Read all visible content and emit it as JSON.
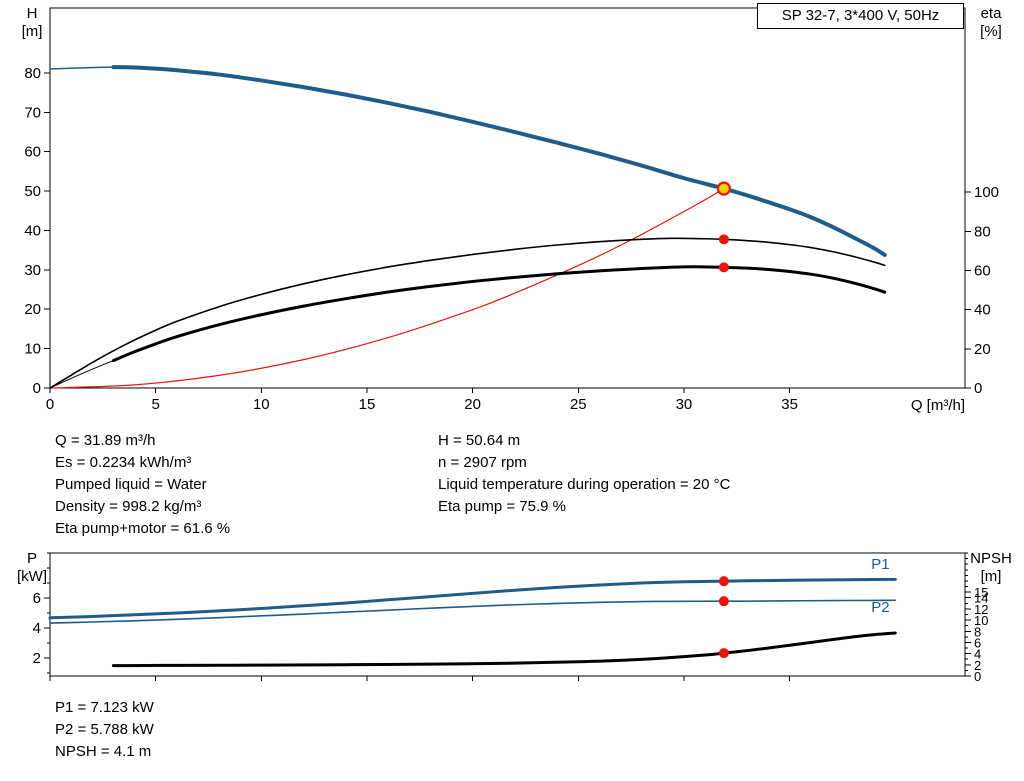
{
  "title_box": "SP 32-7, 3*400 V, 50Hz",
  "info_top": {
    "left": [
      "Q = 31.89 m³/h",
      "Es = 0.2234 kWh/m³",
      "Pumped liquid = Water",
      "Density = 998.2 kg/m³",
      "Eta pump+motor = 61.6 %"
    ],
    "right": [
      "H = 50.64 m",
      "n = 2907 rpm",
      "Liquid temperature during operation = 20 °C",
      "Eta pump = 75.9 %"
    ]
  },
  "info_bottom": [
    "P1 = 7.123 kW",
    "P2 = 5.788 kW",
    "NPSH = 4.1 m"
  ],
  "colors": {
    "curve_blue": "#1f5c8a",
    "curve_black": "#000000",
    "curve_red": "#e01810",
    "marker_red": "#e8140c",
    "duty_fill": "#ffd400"
  },
  "chart_data": [
    {
      "name": "head-efficiency-chart",
      "type": "line",
      "x_axis": {
        "label": "Q [m³/h]",
        "min": 0,
        "max": 43.3,
        "ticks": [
          0,
          5,
          10,
          15,
          20,
          25,
          30,
          35
        ],
        "show_labels": true
      },
      "y_left": {
        "label_lines": [
          "H",
          "[m]"
        ],
        "min": 0,
        "max": 96.5,
        "ticks": [
          0,
          10,
          20,
          30,
          40,
          50,
          60,
          70,
          80
        ]
      },
      "y_right": {
        "label_lines": [
          "eta",
          "[%]"
        ],
        "min": 0,
        "max": 194,
        "ticks": [
          0,
          20,
          40,
          60,
          80,
          100
        ]
      },
      "series": [
        {
          "name": "system-curve",
          "axis": "left",
          "color": "#e01810",
          "width": 1.2,
          "points": [
            [
              0,
              0
            ],
            [
              4,
              0.8
            ],
            [
              8,
              3.2
            ],
            [
              12,
              7.2
            ],
            [
              16,
              12.8
            ],
            [
              20,
              19.9
            ],
            [
              22,
              24.1
            ],
            [
              24,
              28.7
            ],
            [
              26,
              33.6
            ],
            [
              28,
              39
            ],
            [
              30,
              44.8
            ],
            [
              31,
              47.8
            ],
            [
              31.89,
              50.64
            ]
          ]
        },
        {
          "name": "head-curve-start",
          "axis": "left",
          "color": "#1f5c8a",
          "width": 1.5,
          "points": [
            [
              0,
              81
            ],
            [
              1.5,
              81.3
            ],
            [
              3,
              81.5
            ]
          ]
        },
        {
          "name": "head-curve",
          "axis": "left",
          "color": "#1f5c8a",
          "width": 4,
          "points": [
            [
              3,
              81.5
            ],
            [
              4,
              81.4
            ],
            [
              5,
              81.1
            ],
            [
              6,
              80.7
            ],
            [
              8,
              79.6
            ],
            [
              10,
              78.1
            ],
            [
              12,
              76.4
            ],
            [
              14,
              74.5
            ],
            [
              16,
              72.4
            ],
            [
              18,
              70.1
            ],
            [
              20,
              67.6
            ],
            [
              22,
              65
            ],
            [
              24,
              62.3
            ],
            [
              26,
              59.5
            ],
            [
              28,
              56.5
            ],
            [
              30,
              53.3
            ],
            [
              31.89,
              50.64
            ],
            [
              33,
              48.9
            ],
            [
              35,
              45.4
            ],
            [
              36,
              43.4
            ],
            [
              37,
              41
            ],
            [
              38,
              38.3
            ],
            [
              39,
              35.5
            ],
            [
              39.5,
              33.8
            ]
          ]
        },
        {
          "name": "eta-pump-curve",
          "axis": "right",
          "color": "#000000",
          "width": 1.6,
          "points": [
            [
              0,
              0
            ],
            [
              1,
              6.5
            ],
            [
              2,
              13
            ],
            [
              3,
              19
            ],
            [
              4,
              24.5
            ],
            [
              5,
              29.5
            ],
            [
              6,
              34
            ],
            [
              8,
              41.5
            ],
            [
              10,
              47.8
            ],
            [
              12,
              53.2
            ],
            [
              14,
              57.8
            ],
            [
              16,
              61.8
            ],
            [
              18,
              65.2
            ],
            [
              20,
              68.2
            ],
            [
              22,
              70.8
            ],
            [
              24,
              73
            ],
            [
              26,
              74.7
            ],
            [
              28,
              75.9
            ],
            [
              29.5,
              76.4
            ],
            [
              31,
              76.2
            ],
            [
              31.89,
              75.9
            ],
            [
              33,
              75.2
            ],
            [
              34,
              74.4
            ],
            [
              35,
              73.2
            ],
            [
              36,
              71.7
            ],
            [
              37,
              69.7
            ],
            [
              38,
              67.2
            ],
            [
              39,
              64.3
            ],
            [
              39.5,
              62.6
            ]
          ]
        },
        {
          "name": "eta-pump-motor-start",
          "axis": "right",
          "color": "#000000",
          "width": 1,
          "points": [
            [
              0,
              0
            ],
            [
              1,
              4.9
            ],
            [
              2,
              9.6
            ],
            [
              3,
              14
            ]
          ]
        },
        {
          "name": "eta-pump-motor-curve",
          "axis": "right",
          "color": "#000000",
          "width": 3,
          "points": [
            [
              3,
              14
            ],
            [
              4,
              18.5
            ],
            [
              5,
              22.5
            ],
            [
              6,
              26.2
            ],
            [
              8,
              32.3
            ],
            [
              10,
              37.4
            ],
            [
              12,
              41.8
            ],
            [
              14,
              45.6
            ],
            [
              16,
              49
            ],
            [
              18,
              51.9
            ],
            [
              20,
              54.4
            ],
            [
              22,
              56.5
            ],
            [
              24,
              58.3
            ],
            [
              26,
              59.8
            ],
            [
              28,
              61
            ],
            [
              29.5,
              61.7
            ],
            [
              30.5,
              61.9
            ],
            [
              31.89,
              61.6
            ],
            [
              33,
              61.2
            ],
            [
              34,
              60.5
            ],
            [
              35,
              59.5
            ],
            [
              36,
              58.1
            ],
            [
              37,
              56.2
            ],
            [
              38,
              53.7
            ],
            [
              39,
              50.7
            ],
            [
              39.5,
              48.9
            ]
          ]
        }
      ],
      "markers": [
        {
          "name": "duty-point",
          "axis": "left",
          "x": 31.89,
          "y": 50.64,
          "style": "duty"
        },
        {
          "name": "eta-pump-point",
          "axis": "right",
          "x": 31.89,
          "y": 75.9,
          "style": "red"
        },
        {
          "name": "eta-pump-motor-point",
          "axis": "right",
          "x": 31.89,
          "y": 61.6,
          "style": "red"
        }
      ],
      "annotations": []
    },
    {
      "name": "power-npsh-chart",
      "type": "line",
      "x_axis": {
        "label": "",
        "min": 0,
        "max": 43.3,
        "ticks": [
          0,
          5,
          10,
          15,
          20,
          25,
          30,
          35
        ],
        "show_labels": false
      },
      "y_left": {
        "label_lines": [
          "P",
          "[kW]"
        ],
        "min": 0.8,
        "max": 9.0,
        "ticks": [
          2,
          4,
          6
        ],
        "minor_step": 1
      },
      "y_right": {
        "label_lines": [
          "NPSH",
          "[m]"
        ],
        "min": 0,
        "max": 22,
        "ticks": [
          0,
          2,
          4,
          6,
          8,
          10,
          12,
          14,
          15
        ],
        "minor_step": 1,
        "label_size": 13
      },
      "series": [
        {
          "name": "p1-curve",
          "axis": "left",
          "color": "#1f5c8a",
          "width": 3,
          "points": [
            [
              0,
              4.68
            ],
            [
              2,
              4.77
            ],
            [
              4,
              4.88
            ],
            [
              6,
              5.0
            ],
            [
              8,
              5.14
            ],
            [
              10,
              5.3
            ],
            [
              12,
              5.48
            ],
            [
              14,
              5.67
            ],
            [
              16,
              5.88
            ],
            [
              18,
              6.09
            ],
            [
              20,
              6.31
            ],
            [
              22,
              6.52
            ],
            [
              24,
              6.71
            ],
            [
              26,
              6.87
            ],
            [
              28,
              7.0
            ],
            [
              30,
              7.08
            ],
            [
              31.89,
              7.123
            ],
            [
              33,
              7.15
            ],
            [
              35,
              7.18
            ],
            [
              37,
              7.21
            ],
            [
              39,
              7.23
            ],
            [
              40,
              7.24
            ]
          ]
        },
        {
          "name": "p2-curve",
          "axis": "left",
          "color": "#1f5c8a",
          "width": 1.6,
          "points": [
            [
              0,
              4.33
            ],
            [
              2,
              4.4
            ],
            [
              4,
              4.48
            ],
            [
              6,
              4.58
            ],
            [
              8,
              4.69
            ],
            [
              10,
              4.81
            ],
            [
              12,
              4.93
            ],
            [
              14,
              5.06
            ],
            [
              16,
              5.19
            ],
            [
              18,
              5.32
            ],
            [
              20,
              5.44
            ],
            [
              22,
              5.55
            ],
            [
              24,
              5.64
            ],
            [
              26,
              5.71
            ],
            [
              28,
              5.76
            ],
            [
              30,
              5.78
            ],
            [
              31.89,
              5.788
            ],
            [
              33,
              5.79
            ],
            [
              35,
              5.81
            ],
            [
              37,
              5.83
            ],
            [
              39,
              5.84
            ],
            [
              40,
              5.85
            ]
          ]
        },
        {
          "name": "npsh-curve",
          "axis": "right",
          "color": "#000000",
          "width": 3,
          "points": [
            [
              3,
              1.85
            ],
            [
              6,
              1.9
            ],
            [
              10,
              1.95
            ],
            [
              14,
              2.02
            ],
            [
              18,
              2.12
            ],
            [
              22,
              2.3
            ],
            [
              25,
              2.55
            ],
            [
              27,
              2.8
            ],
            [
              29,
              3.2
            ],
            [
              31,
              3.75
            ],
            [
              31.89,
              4.1
            ],
            [
              33,
              4.55
            ],
            [
              34,
              5.0
            ],
            [
              35,
              5.5
            ],
            [
              36,
              6.0
            ],
            [
              37,
              6.5
            ],
            [
              38,
              7.0
            ],
            [
              39,
              7.4
            ],
            [
              40,
              7.7
            ]
          ]
        }
      ],
      "markers": [
        {
          "name": "p1-point",
          "axis": "left",
          "x": 31.89,
          "y": 7.123,
          "style": "red"
        },
        {
          "name": "p2-point",
          "axis": "left",
          "x": 31.89,
          "y": 5.788,
          "style": "red"
        },
        {
          "name": "npsh-point",
          "axis": "right",
          "x": 31.89,
          "y": 4.1,
          "style": "red"
        }
      ],
      "annotations": [
        {
          "x": 39.3,
          "y": 7.95,
          "axis": "left",
          "text": "P1",
          "color": "#1f5c8a"
        },
        {
          "x": 39.3,
          "y": 5.08,
          "axis": "left",
          "text": "P2",
          "color": "#1f5c8a"
        }
      ]
    }
  ]
}
